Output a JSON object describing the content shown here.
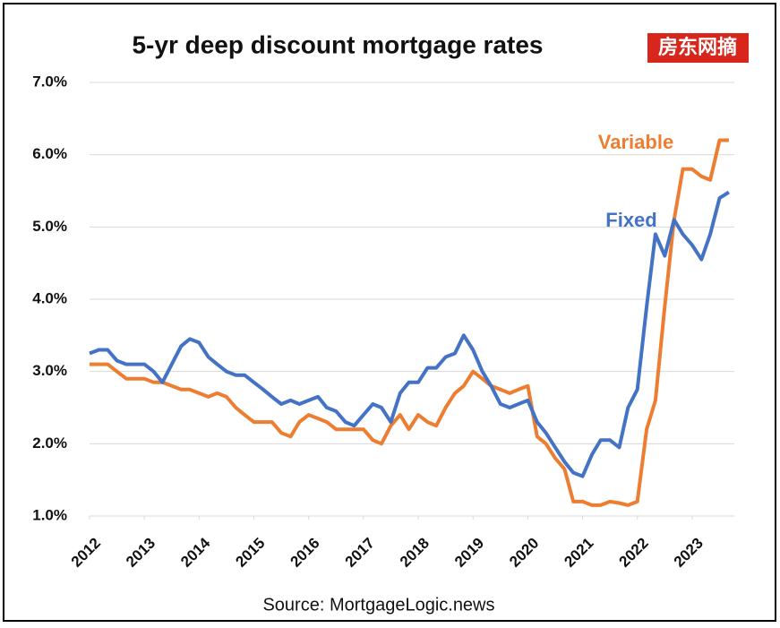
{
  "chart_data": {
    "type": "line",
    "title": "5-yr deep discount mortgage rates",
    "watermark": "房东网摘",
    "source": "Source: MortgageLogic.news",
    "x": [
      2012,
      2012.17,
      2012.33,
      2012.5,
      2012.67,
      2012.83,
      2013,
      2013.17,
      2013.33,
      2013.5,
      2013.67,
      2013.83,
      2014,
      2014.17,
      2014.33,
      2014.5,
      2014.67,
      2014.83,
      2015,
      2015.17,
      2015.33,
      2015.5,
      2015.67,
      2015.83,
      2016,
      2016.17,
      2016.33,
      2016.5,
      2016.67,
      2016.83,
      2017,
      2017.17,
      2017.33,
      2017.5,
      2017.67,
      2017.83,
      2018,
      2018.17,
      2018.33,
      2018.5,
      2018.67,
      2018.83,
      2019,
      2019.17,
      2019.33,
      2019.5,
      2019.67,
      2019.83,
      2020,
      2020.17,
      2020.33,
      2020.5,
      2020.67,
      2020.83,
      2021,
      2021.17,
      2021.33,
      2021.5,
      2021.67,
      2021.83,
      2022,
      2022.17,
      2022.33,
      2022.5,
      2022.67,
      2022.83,
      2023,
      2023.17,
      2023.33,
      2023.5,
      2023.67
    ],
    "series": [
      {
        "name": "Variable",
        "color": "#ed7d31",
        "values": [
          3.1,
          3.1,
          3.1,
          3.0,
          2.9,
          2.9,
          2.9,
          2.85,
          2.85,
          2.8,
          2.75,
          2.75,
          2.7,
          2.65,
          2.7,
          2.65,
          2.5,
          2.4,
          2.3,
          2.3,
          2.3,
          2.15,
          2.1,
          2.3,
          2.4,
          2.35,
          2.3,
          2.2,
          2.2,
          2.2,
          2.2,
          2.05,
          2.0,
          2.25,
          2.4,
          2.2,
          2.4,
          2.3,
          2.25,
          2.5,
          2.7,
          2.8,
          3.0,
          2.9,
          2.8,
          2.75,
          2.7,
          2.75,
          2.8,
          2.1,
          2.0,
          1.8,
          1.65,
          1.2,
          1.2,
          1.15,
          1.15,
          1.2,
          1.18,
          1.15,
          1.2,
          2.2,
          2.6,
          3.9,
          5.1,
          5.8,
          5.8,
          5.7,
          5.65,
          6.2,
          6.2
        ]
      },
      {
        "name": "Fixed",
        "color": "#4472c4",
        "values": [
          3.25,
          3.3,
          3.3,
          3.15,
          3.1,
          3.1,
          3.1,
          3.0,
          2.85,
          3.1,
          3.35,
          3.45,
          3.4,
          3.2,
          3.1,
          3.0,
          2.95,
          2.95,
          2.85,
          2.75,
          2.65,
          2.55,
          2.6,
          2.55,
          2.6,
          2.65,
          2.5,
          2.45,
          2.3,
          2.25,
          2.4,
          2.55,
          2.5,
          2.3,
          2.7,
          2.85,
          2.85,
          3.05,
          3.05,
          3.2,
          3.25,
          3.5,
          3.3,
          3.0,
          2.8,
          2.55,
          2.5,
          2.55,
          2.6,
          2.3,
          2.15,
          1.95,
          1.75,
          1.6,
          1.55,
          1.85,
          2.05,
          2.05,
          1.95,
          2.5,
          2.75,
          3.9,
          4.9,
          4.6,
          5.1,
          4.9,
          4.75,
          4.55,
          4.9,
          5.4,
          5.48
        ]
      }
    ],
    "xlim": [
      2012,
      2023.77
    ],
    "xticks": [
      2012,
      2013,
      2014,
      2015,
      2016,
      2017,
      2018,
      2019,
      2020,
      2021,
      2022,
      2023
    ],
    "ylim": [
      1,
      7
    ],
    "yticks": [
      {
        "value": 1,
        "label": "1.0%"
      },
      {
        "value": 2,
        "label": "2.0%"
      },
      {
        "value": 3,
        "label": "3.0%"
      },
      {
        "value": 4,
        "label": "4.0%"
      },
      {
        "value": 5,
        "label": "5.0%"
      },
      {
        "value": 6,
        "label": "6.0%"
      },
      {
        "value": 7,
        "label": "7.0%"
      }
    ],
    "grid": true
  }
}
